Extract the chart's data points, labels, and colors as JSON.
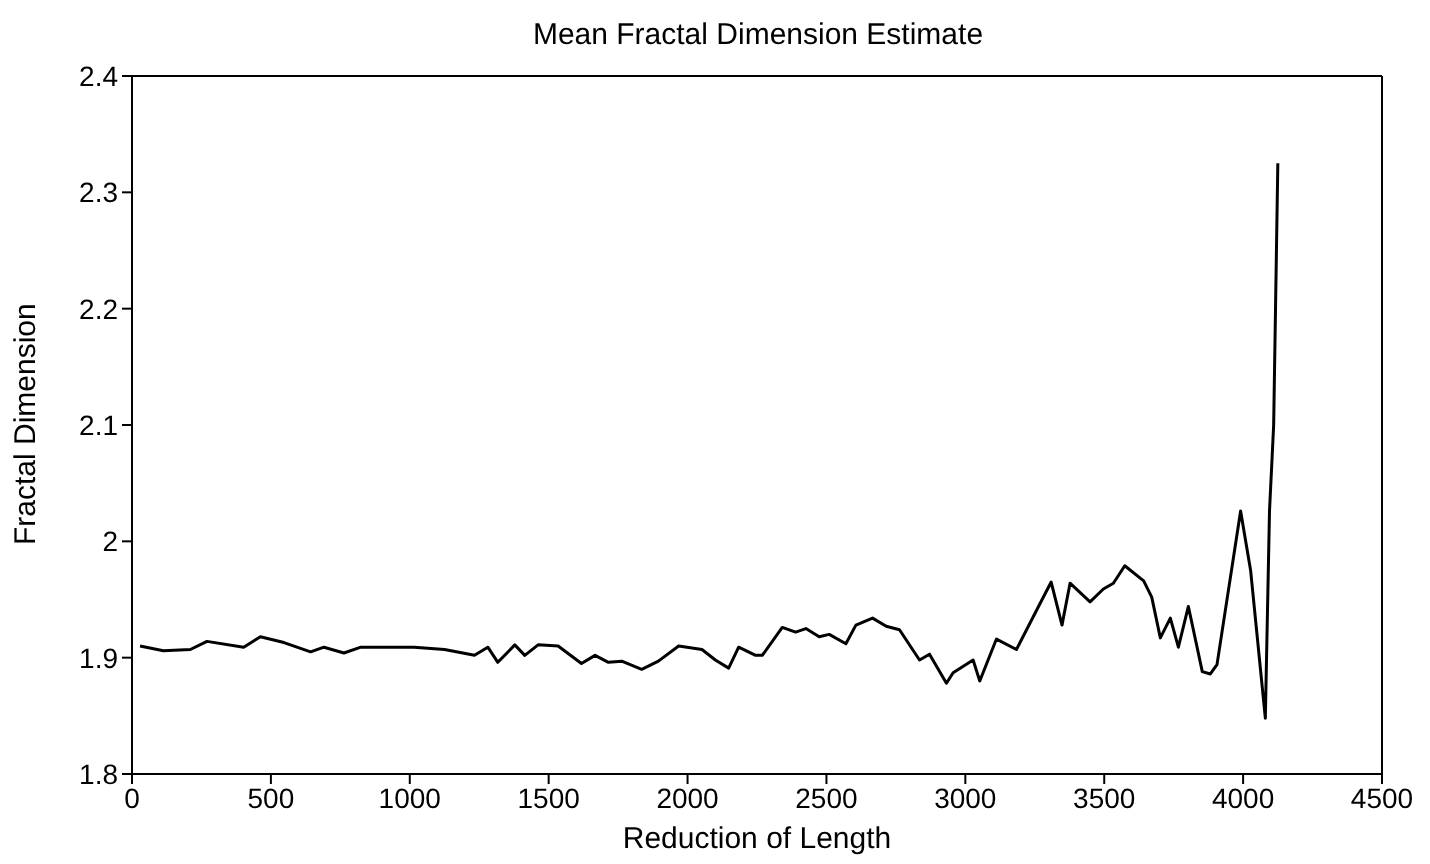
{
  "chart_data": {
    "type": "line",
    "title": "Mean Fractal Dimension Estimate",
    "xlabel": "Reduction of Length",
    "ylabel": "Fractal Dimension",
    "xlim": [
      0,
      4500
    ],
    "xticks": [
      0,
      500,
      1000,
      1500,
      2000,
      2500,
      3000,
      3500,
      4000,
      4500
    ],
    "ylim": [
      1.8,
      2.4
    ],
    "yticks": [
      1.8,
      1.9,
      2,
      2.1,
      2.2,
      2.3,
      2.4
    ],
    "grid": false,
    "marker": "none",
    "line_style": "solid",
    "series": [
      {
        "color": "#000000",
        "x": [
          29,
          113,
          210,
          270,
          402,
          462,
          547,
          643,
          691,
          763,
          824,
          932,
          1016,
          1125,
          1233,
          1281,
          1317,
          1378,
          1414,
          1462,
          1534,
          1618,
          1667,
          1715,
          1763,
          1835,
          1895,
          1968,
          2052,
          2100,
          2148,
          2184,
          2245,
          2269,
          2341,
          2389,
          2426,
          2474,
          2510,
          2570,
          2606,
          2666,
          2715,
          2763,
          2835,
          2871,
          2932,
          2956,
          3028,
          3052,
          3112,
          3184,
          3257,
          3309,
          3348,
          3377,
          3449,
          3497,
          3533,
          3574,
          3642,
          3671,
          3702,
          3738,
          3767,
          3803,
          3853,
          3882,
          3906,
          3991,
          4027,
          4080,
          4095,
          4110,
          4125
        ],
        "values": [
          1.91,
          1.906,
          1.907,
          1.914,
          1.909,
          1.918,
          1.913,
          1.905,
          1.909,
          1.904,
          1.909,
          1.909,
          1.909,
          1.907,
          1.902,
          1.909,
          1.896,
          1.911,
          1.902,
          1.911,
          1.91,
          1.895,
          1.902,
          1.896,
          1.897,
          1.89,
          1.897,
          1.91,
          1.907,
          1.898,
          1.891,
          1.909,
          1.902,
          1.902,
          1.926,
          1.922,
          1.925,
          1.918,
          1.92,
          1.912,
          1.928,
          1.934,
          1.927,
          1.924,
          1.898,
          1.903,
          1.878,
          1.887,
          1.898,
          1.88,
          1.916,
          1.907,
          1.941,
          1.965,
          1.928,
          1.964,
          1.948,
          1.959,
          1.964,
          1.979,
          1.966,
          1.952,
          1.917,
          1.934,
          1.909,
          1.944,
          1.888,
          1.886,
          1.894,
          2.026,
          1.975,
          1.848,
          2.026,
          2.1,
          2.325
        ]
      }
    ]
  }
}
